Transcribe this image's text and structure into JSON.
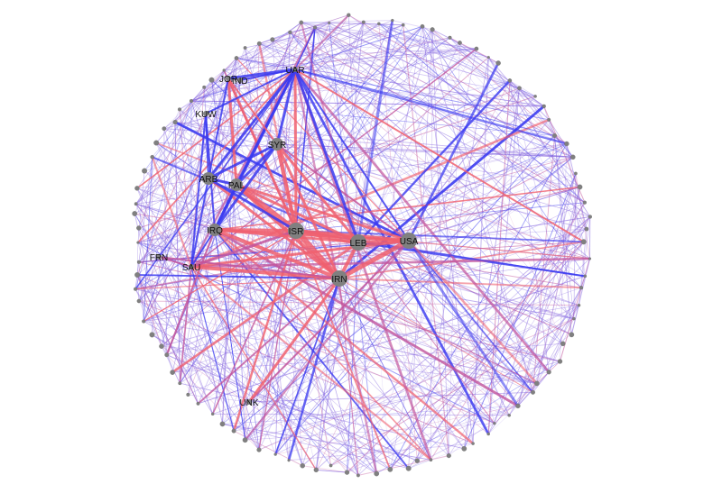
{
  "colors": {
    "conflict": "#f0606e",
    "cooperation": "#3a3af0",
    "mixed": "#c2559c",
    "minor_edge": "#8a6be0",
    "node": "#808080",
    "background": "#ffffff"
  },
  "nodes": [
    {
      "id": "USA",
      "label": "USA",
      "size": "large"
    },
    {
      "id": "IRN",
      "label": "IRN",
      "size": "large"
    },
    {
      "id": "ISR",
      "label": "ISR",
      "size": "large"
    },
    {
      "id": "LEB",
      "label": "LEB",
      "size": "large"
    },
    {
      "id": "IRQ",
      "label": "IRQ",
      "size": "medium"
    },
    {
      "id": "PAL",
      "label": "PAL",
      "size": "medium"
    },
    {
      "id": "ARB",
      "label": "ARB",
      "size": "medium"
    },
    {
      "id": "SYR",
      "label": "SYR",
      "size": "medium"
    },
    {
      "id": "SAU",
      "label": "SAU",
      "size": "small"
    },
    {
      "id": "FRN",
      "label": "FRN",
      "size": "small"
    },
    {
      "id": "KUW",
      "label": "KUW",
      "size": "small"
    },
    {
      "id": "JOR",
      "label": "JOR",
      "size": "small"
    },
    {
      "id": "IND",
      "label": "IND",
      "size": "small"
    },
    {
      "id": "UAR",
      "label": "UAR",
      "size": "small"
    },
    {
      "id": "UNK",
      "label": "UNK",
      "size": "small"
    }
  ],
  "edges": [
    {
      "source": "USA",
      "target": "IRN",
      "kind": "conflict",
      "weight": 5
    },
    {
      "source": "USA",
      "target": "LEB",
      "kind": "conflict",
      "weight": 4
    },
    {
      "source": "USA",
      "target": "ISR",
      "kind": "conflict",
      "weight": 4
    },
    {
      "source": "USA",
      "target": "IRQ",
      "kind": "conflict",
      "weight": 3
    },
    {
      "source": "USA",
      "target": "SAU",
      "kind": "conflict",
      "weight": 3
    },
    {
      "source": "USA",
      "target": "PAL",
      "kind": "conflict",
      "weight": 3
    },
    {
      "source": "USA",
      "target": "SYR",
      "kind": "mixed",
      "weight": 2
    },
    {
      "source": "USA",
      "target": "UAR",
      "kind": "cooperation",
      "weight": 2
    },
    {
      "source": "USA",
      "target": "UNK",
      "kind": "mixed",
      "weight": 2
    },
    {
      "source": "IRN",
      "target": "ISR",
      "kind": "conflict",
      "weight": 6
    },
    {
      "source": "IRN",
      "target": "LEB",
      "kind": "conflict",
      "weight": 4
    },
    {
      "source": "IRN",
      "target": "IRQ",
      "kind": "conflict",
      "weight": 4
    },
    {
      "source": "IRN",
      "target": "SAU",
      "kind": "conflict",
      "weight": 4
    },
    {
      "source": "IRN",
      "target": "PAL",
      "kind": "conflict",
      "weight": 4
    },
    {
      "source": "IRN",
      "target": "SYR",
      "kind": "conflict",
      "weight": 3
    },
    {
      "source": "IRN",
      "target": "ARB",
      "kind": "conflict",
      "weight": 3
    },
    {
      "source": "IRN",
      "target": "FRN",
      "kind": "mixed",
      "weight": 2
    },
    {
      "source": "IRN",
      "target": "UNK",
      "kind": "conflict",
      "weight": 3
    },
    {
      "source": "ISR",
      "target": "LEB",
      "kind": "conflict",
      "weight": 5
    },
    {
      "source": "ISR",
      "target": "PAL",
      "kind": "conflict",
      "weight": 6
    },
    {
      "source": "ISR",
      "target": "SYR",
      "kind": "conflict",
      "weight": 4
    },
    {
      "source": "ISR",
      "target": "IRQ",
      "kind": "conflict",
      "weight": 4
    },
    {
      "source": "ISR",
      "target": "ARB",
      "kind": "cooperation",
      "weight": 3
    },
    {
      "source": "ISR",
      "target": "UAR",
      "kind": "conflict",
      "weight": 3
    },
    {
      "source": "ISR",
      "target": "JOR",
      "kind": "conflict",
      "weight": 3
    },
    {
      "source": "ISR",
      "target": "SAU",
      "kind": "mixed",
      "weight": 3
    },
    {
      "source": "LEB",
      "target": "SYR",
      "kind": "conflict",
      "weight": 3
    },
    {
      "source": "LEB",
      "target": "PAL",
      "kind": "conflict",
      "weight": 3
    },
    {
      "source": "LEB",
      "target": "IRQ",
      "kind": "conflict",
      "weight": 3
    },
    {
      "source": "LEB",
      "target": "UAR",
      "kind": "cooperation",
      "weight": 3
    },
    {
      "source": "IRQ",
      "target": "PAL",
      "kind": "cooperation",
      "weight": 3
    },
    {
      "source": "IRQ",
      "target": "SYR",
      "kind": "cooperation",
      "weight": 3
    },
    {
      "source": "IRQ",
      "target": "UAR",
      "kind": "cooperation",
      "weight": 3
    },
    {
      "source": "IRQ",
      "target": "SAU",
      "kind": "cooperation",
      "weight": 2
    },
    {
      "source": "IRQ",
      "target": "KUW",
      "kind": "cooperation",
      "weight": 2
    },
    {
      "source": "PAL",
      "target": "SYR",
      "kind": "cooperation",
      "weight": 3
    },
    {
      "source": "PAL",
      "target": "ARB",
      "kind": "cooperation",
      "weight": 3
    },
    {
      "source": "PAL",
      "target": "UAR",
      "kind": "cooperation",
      "weight": 3
    },
    {
      "source": "PAL",
      "target": "JOR",
      "kind": "conflict",
      "weight": 3
    },
    {
      "source": "ARB",
      "target": "SYR",
      "kind": "cooperation",
      "weight": 3
    },
    {
      "source": "ARB",
      "target": "UAR",
      "kind": "cooperation",
      "weight": 3
    },
    {
      "source": "ARB",
      "target": "KUW",
      "kind": "cooperation",
      "weight": 2
    },
    {
      "source": "ARB",
      "target": "JOR",
      "kind": "cooperation",
      "weight": 2
    },
    {
      "source": "ARB",
      "target": "SAU",
      "kind": "cooperation",
      "weight": 2
    },
    {
      "source": "SYR",
      "target": "UAR",
      "kind": "cooperation",
      "weight": 3
    },
    {
      "source": "SYR",
      "target": "JOR",
      "kind": "conflict",
      "weight": 2
    },
    {
      "source": "SAU",
      "target": "FRN",
      "kind": "mixed",
      "weight": 2
    },
    {
      "source": "SAU",
      "target": "KUW",
      "kind": "cooperation",
      "weight": 2
    },
    {
      "source": "JOR",
      "target": "UAR",
      "kind": "cooperation",
      "weight": 3
    },
    {
      "source": "IND",
      "target": "UAR",
      "kind": "cooperation",
      "weight": 2
    },
    {
      "source": "KUW",
      "target": "UAR",
      "kind": "cooperation",
      "weight": 2
    }
  ]
}
